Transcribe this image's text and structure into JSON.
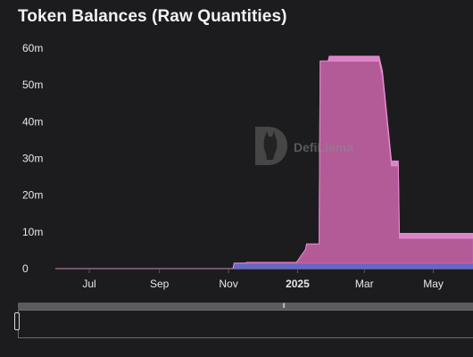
{
  "chart_data": {
    "type": "area",
    "title": "Token Balances (Raw Quantities)",
    "xlabel": "",
    "ylabel": "",
    "ylim": [
      0,
      60000000
    ],
    "xlim": [
      "2024-06-01",
      "2025-06-05"
    ],
    "y_ticks": [
      {
        "value": 0,
        "label": "0"
      },
      {
        "value": 10000000,
        "label": "10m"
      },
      {
        "value": 20000000,
        "label": "20m"
      },
      {
        "value": 30000000,
        "label": "30m"
      },
      {
        "value": 40000000,
        "label": "40m"
      },
      {
        "value": 50000000,
        "label": "50m"
      },
      {
        "value": 60000000,
        "label": "60m"
      }
    ],
    "x_ticks": [
      {
        "date": "2024-07-01",
        "label": "Jul",
        "bold": false
      },
      {
        "date": "2024-09-01",
        "label": "Sep",
        "bold": false
      },
      {
        "date": "2024-11-01",
        "label": "Nov",
        "bold": false
      },
      {
        "date": "2025-01-01",
        "label": "2025",
        "bold": true
      },
      {
        "date": "2025-03-01",
        "label": "Mar",
        "bold": false
      },
      {
        "date": "2025-05-01",
        "label": "May",
        "bold": false
      }
    ],
    "grid": false,
    "stacked": true,
    "series": [
      {
        "color": "#6a6ad0",
        "points": [
          {
            "x": "2024-06-01",
            "y": 0
          },
          {
            "x": "2024-11-05",
            "y": 0
          },
          {
            "x": "2024-11-06",
            "y": 1500000
          },
          {
            "x": "2025-06-05",
            "y": 1500000
          }
        ]
      },
      {
        "color": "#c764a8",
        "points": [
          {
            "x": "2024-06-01",
            "y": 0
          },
          {
            "x": "2024-11-16",
            "y": 0
          },
          {
            "x": "2024-11-17",
            "y": 200000
          },
          {
            "x": "2024-12-31",
            "y": 200000
          },
          {
            "x": "2025-01-08",
            "y": 3700000
          },
          {
            "x": "2025-01-09",
            "y": 5200000
          },
          {
            "x": "2025-01-20",
            "y": 5200000
          },
          {
            "x": "2025-01-21",
            "y": 55000000
          },
          {
            "x": "2025-03-14",
            "y": 55000000
          },
          {
            "x": "2025-03-17",
            "y": 51000000
          },
          {
            "x": "2025-03-25",
            "y": 26500000
          },
          {
            "x": "2025-03-31",
            "y": 26500000
          },
          {
            "x": "2025-04-01",
            "y": 6800000
          },
          {
            "x": "2025-06-05",
            "y": 6800000
          }
        ]
      },
      {
        "color": "#e58ad0",
        "points": [
          {
            "x": "2024-06-01",
            "y": 0
          },
          {
            "x": "2025-01-28",
            "y": 0
          },
          {
            "x": "2025-01-29",
            "y": 1300000
          },
          {
            "x": "2025-06-05",
            "y": 1300000
          }
        ]
      }
    ],
    "watermark": "DefiLlama"
  },
  "colors": {
    "background": "#1c1c1f",
    "text": "#e8e8e8",
    "axis_line": "#5a5a5e"
  },
  "zoom_slider": {
    "grip_glyph": "⦀"
  }
}
